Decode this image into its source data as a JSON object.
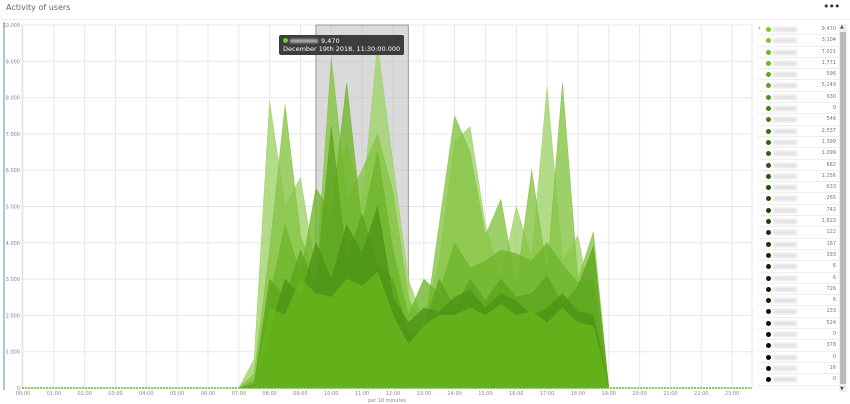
{
  "header": {
    "title": "Activity of users",
    "more_icon": "ellipsis-icon",
    "more_label": "•••"
  },
  "tooltip": {
    "value": "9,470",
    "date": "December 19th 2018, 11:30:00.000",
    "color": "#7cc52a"
  },
  "legend": {
    "values": [
      "9,470",
      "3,104",
      "7,021",
      "1,771",
      "596",
      "5,243",
      "630",
      "0",
      "546",
      "2,537",
      "1,399",
      "1,099",
      "682",
      "1,256",
      "633",
      "265",
      "742",
      "1,823",
      "122",
      "167",
      "393",
      "6",
      "6",
      "726",
      "6",
      "133",
      "524",
      "0",
      "378",
      "0",
      "16",
      "0"
    ]
  },
  "chart_data": {
    "type": "area",
    "xlabel": "per 10 minutes",
    "ylabel": "",
    "ylim": [
      0,
      10000
    ],
    "yticks": [
      "0",
      "1.000",
      "2.000",
      "3.000",
      "4.000",
      "5.000",
      "6.000",
      "7.000",
      "8.000",
      "9.000",
      "10.000"
    ],
    "xticks": [
      "00:00",
      "01:00",
      "02:00",
      "03:00",
      "04:00",
      "05:00",
      "06:00",
      "07:00",
      "08:00",
      "09:00",
      "10:00",
      "11:00",
      "12:00",
      "13:00",
      "14:00",
      "15:00",
      "16:00",
      "17:00",
      "18:00",
      "19:00",
      "20:00",
      "21:00",
      "22:00",
      "23:00"
    ],
    "grid": true,
    "highlight": [
      "09:30",
      "12:30"
    ],
    "x": [
      "07:00",
      "07:30",
      "08:00",
      "08:30",
      "09:00",
      "09:30",
      "10:00",
      "10:30",
      "11:00",
      "11:30",
      "12:00",
      "12:30",
      "13:00",
      "13:30",
      "14:00",
      "14:30",
      "15:00",
      "15:30",
      "16:00",
      "16:30",
      "17:00",
      "17:30",
      "18:00",
      "18:30",
      "19:00"
    ],
    "series": [
      {
        "color": "#9fd36a",
        "values": [
          0,
          800,
          7900,
          5000,
          5800,
          3200,
          4500,
          6800,
          5000,
          9470,
          6200,
          3000,
          1800,
          3500,
          6800,
          7200,
          4500,
          3000,
          5000,
          3600,
          8300,
          3500,
          4200,
          2000,
          0
        ]
      },
      {
        "color": "#86c443",
        "values": [
          0,
          400,
          3800,
          7800,
          4200,
          3000,
          9100,
          5200,
          6000,
          7000,
          5400,
          2500,
          1500,
          4500,
          7500,
          6500,
          4200,
          5200,
          2800,
          6000,
          3200,
          8400,
          3000,
          4300,
          0
        ]
      },
      {
        "color": "#6fb52a",
        "values": [
          0,
          200,
          2500,
          4500,
          3100,
          5500,
          4800,
          8400,
          4500,
          6500,
          3800,
          2000,
          3000,
          2600,
          4000,
          3300,
          3500,
          3800,
          3700,
          3500,
          4000,
          3400,
          2900,
          3000,
          0
        ]
      },
      {
        "color": "#5ea51e",
        "values": [
          0,
          100,
          3000,
          2500,
          3800,
          2800,
          7200,
          3500,
          4800,
          3400,
          3000,
          1500,
          1700,
          3000,
          2200,
          3000,
          2400,
          3000,
          2500,
          2600,
          3100,
          2300,
          2800,
          3900,
          0
        ]
      },
      {
        "color": "#4f9416",
        "values": [
          0,
          0,
          1500,
          3000,
          2500,
          4000,
          3000,
          4500,
          3700,
          5000,
          2500,
          1800,
          2200,
          2100,
          2500,
          2700,
          2200,
          2600,
          2400,
          2000,
          2200,
          2600,
          2100,
          2000,
          0
        ]
      },
      {
        "color": "#67b81c",
        "values": [
          0,
          0,
          2200,
          2000,
          3000,
          2600,
          2500,
          3000,
          2800,
          3200,
          2000,
          1200,
          1700,
          2000,
          2000,
          2200,
          2000,
          2300,
          2000,
          2100,
          1800,
          2200,
          1800,
          1700,
          0
        ]
      }
    ]
  }
}
